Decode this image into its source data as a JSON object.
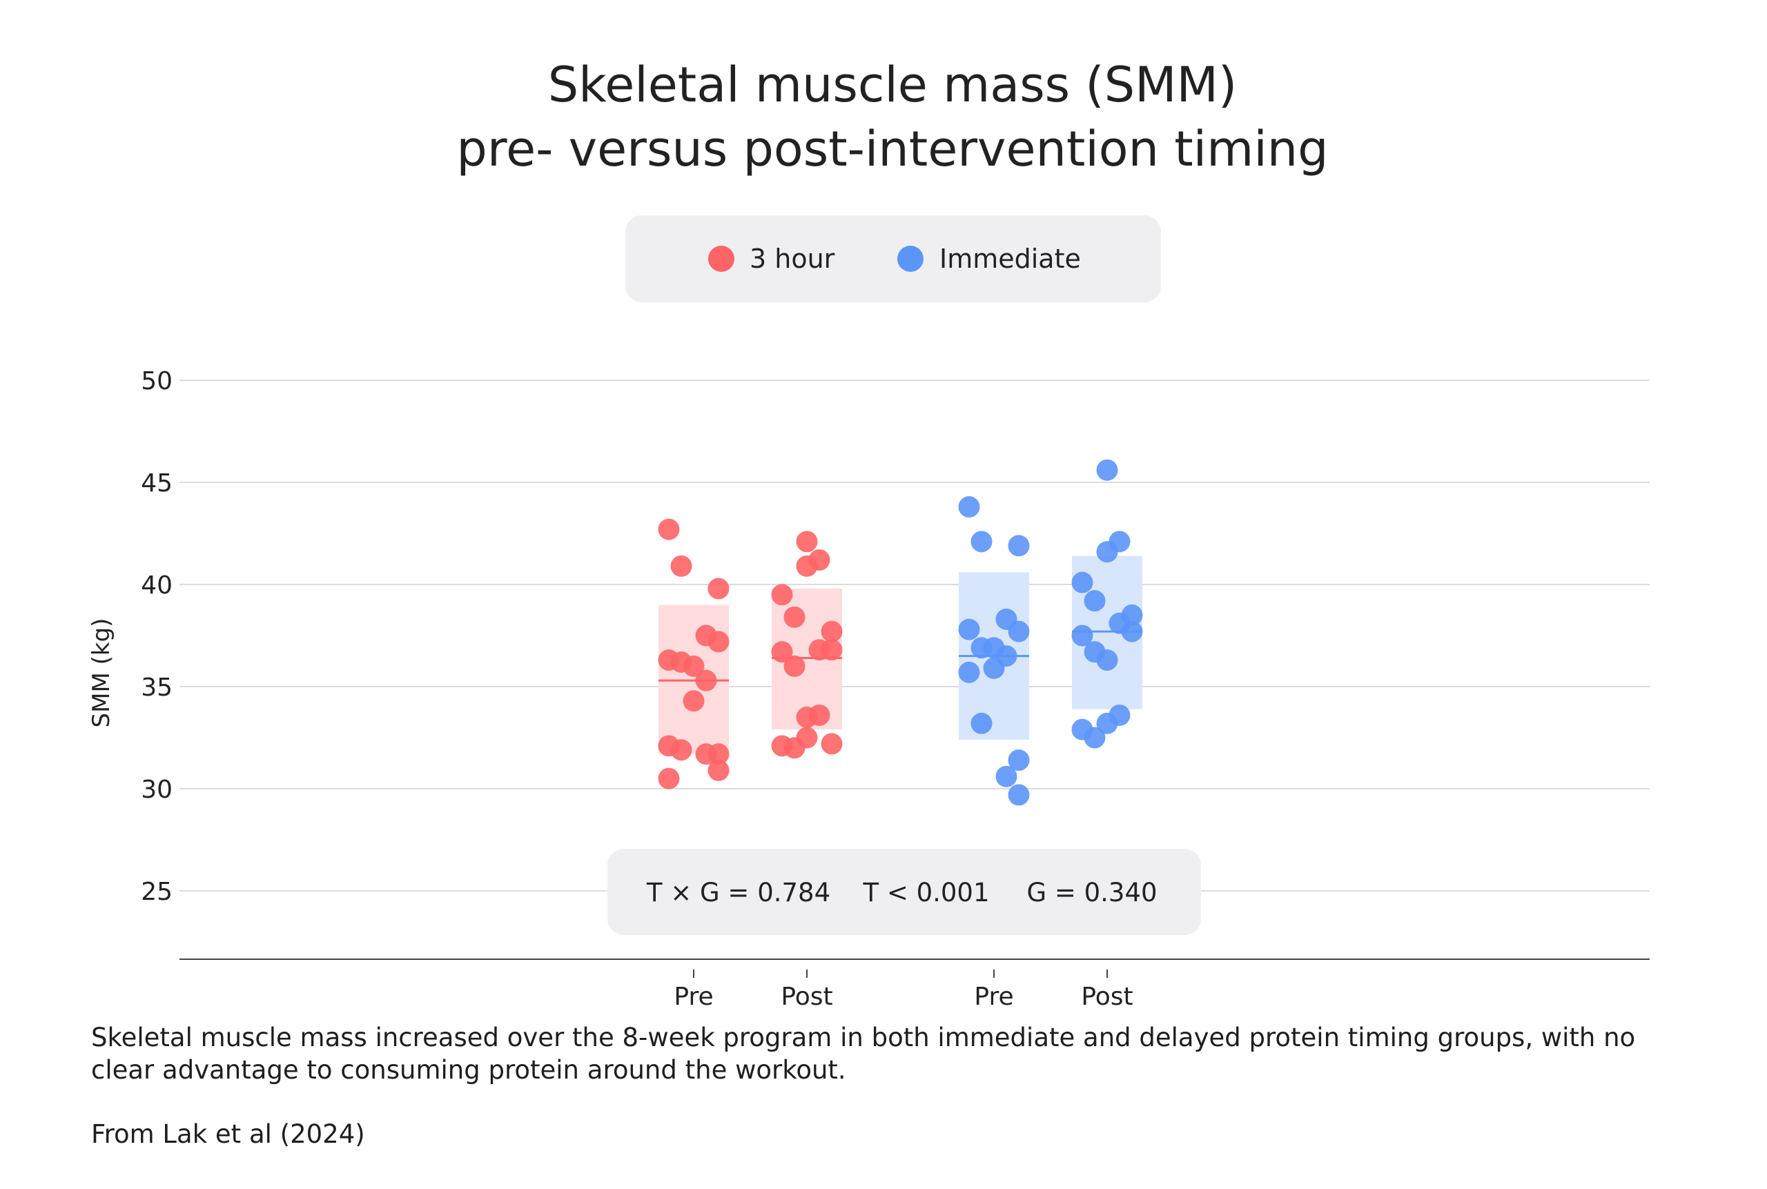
{
  "chart_data": {
    "type": "scatter",
    "title": [
      "Skeletal muscle mass (SMM)",
      "pre- versus post-intervention timing"
    ],
    "ylabel": "SMM (kg)",
    "xlabel": "",
    "ylim": [
      22.5,
      50
    ],
    "yticks": [
      25,
      30,
      35,
      40,
      45,
      50
    ],
    "grid": true,
    "legend_placement": "top-center",
    "categories": [
      "Pre",
      "Post",
      "Pre",
      "Post"
    ],
    "series": [
      {
        "name": "3 hour",
        "color": "#ff6466",
        "band_color": "#ffdcdd",
        "groups": [
          {
            "label": "Pre",
            "mean": 35.3,
            "band": [
              31.7,
              39.0
            ],
            "values": [
              42.7,
              40.9,
              39.8,
              37.5,
              37.2,
              36.3,
              36.2,
              36.0,
              35.3,
              34.3,
              32.1,
              31.9,
              31.7,
              31.7,
              30.9,
              30.5
            ]
          },
          {
            "label": "Post",
            "mean": 36.4,
            "band": [
              32.9,
              39.8
            ],
            "values": [
              42.1,
              41.2,
              40.9,
              39.5,
              38.4,
              37.7,
              36.8,
              36.8,
              36.7,
              36.0,
              33.5,
              33.6,
              32.5,
              32.1,
              32.0,
              32.2
            ]
          }
        ]
      },
      {
        "name": "Immediate",
        "color": "#5b95f8",
        "band_color": "#d8e6fc",
        "groups": [
          {
            "label": "Pre",
            "mean": 36.5,
            "band": [
              32.4,
              40.6
            ],
            "values": [
              43.8,
              42.1,
              41.9,
              38.3,
              37.7,
              37.8,
              36.9,
              36.9,
              36.5,
              35.9,
              35.7,
              33.2,
              31.4,
              30.6,
              29.7
            ]
          },
          {
            "label": "Post",
            "mean": 37.7,
            "band": [
              33.9,
              41.4
            ],
            "values": [
              45.6,
              42.1,
              41.6,
              40.1,
              39.2,
              38.5,
              38.1,
              37.7,
              37.5,
              36.7,
              36.3,
              33.6,
              33.2,
              32.9,
              32.5
            ]
          }
        ]
      }
    ],
    "stats": [
      "T × G = 0.784",
      "T < 0.001",
      "G = 0.340"
    ]
  },
  "caption": "Skeletal muscle mass increased over the 8-week program in both immediate and delayed protein timing groups, with no clear advantage to consuming protein around the workout.",
  "source": "From Lak et al (2024)"
}
